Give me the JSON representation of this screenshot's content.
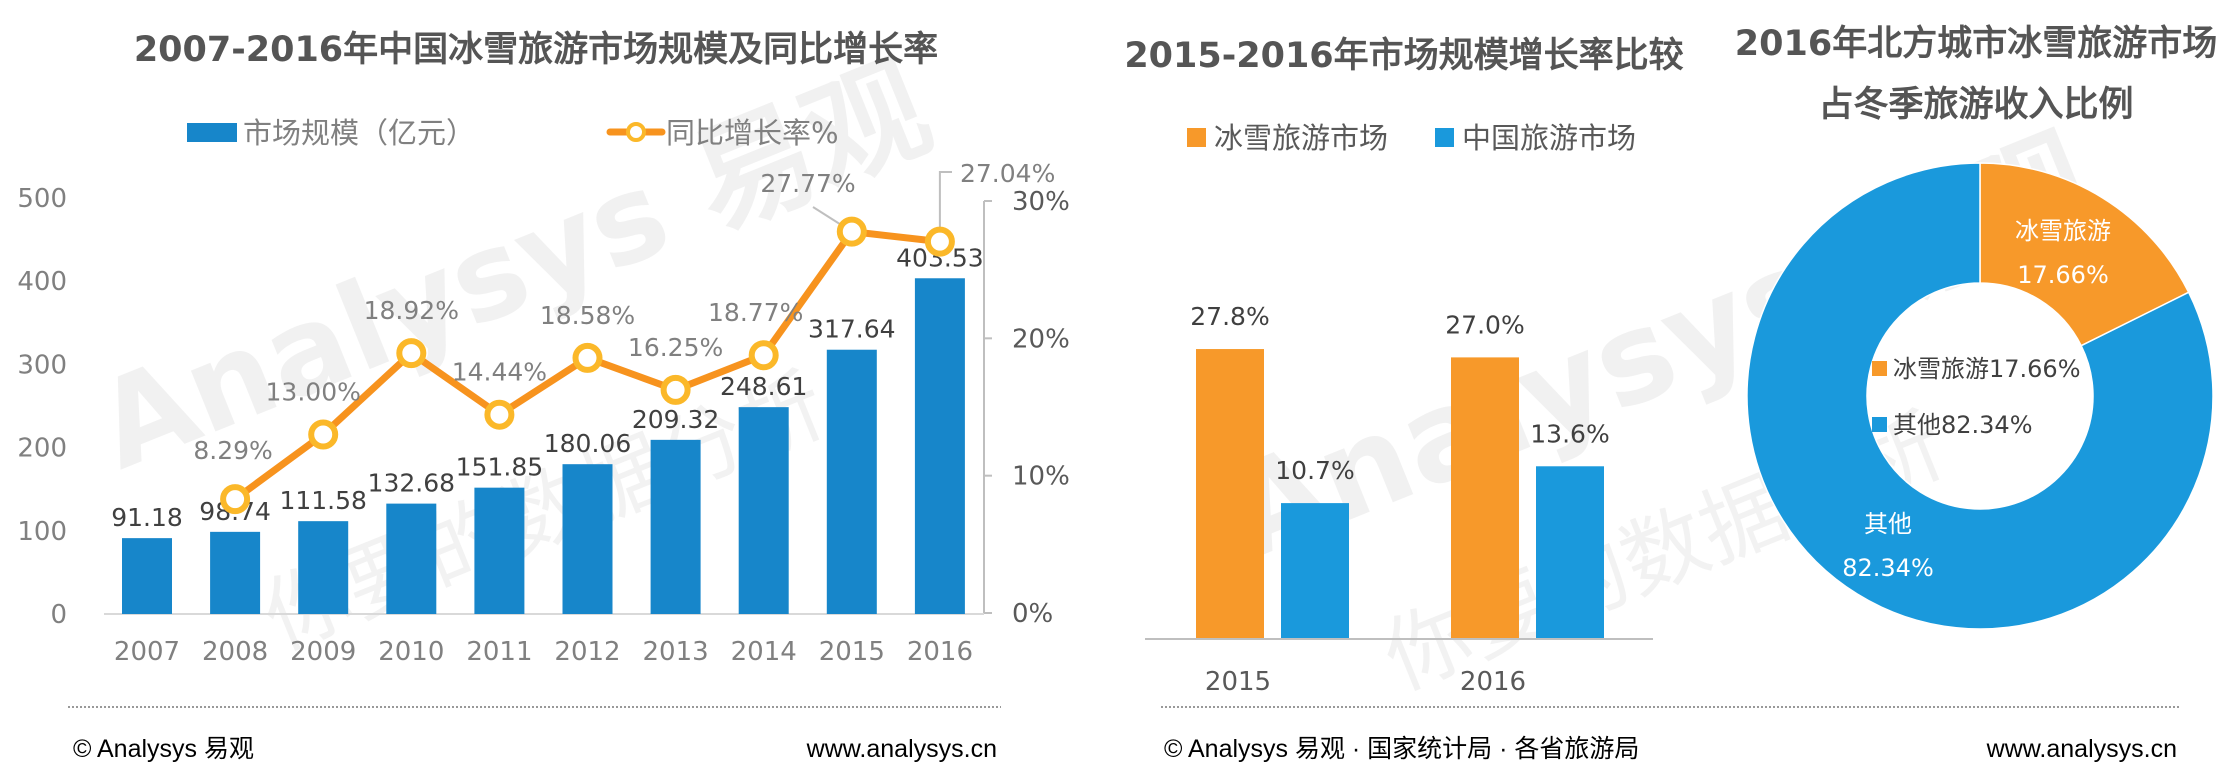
{
  "colors": {
    "blue_bar": "#1786CA",
    "line_orange": "#F7931E",
    "marker_ring": "#FBB829",
    "orange": "#F7992A",
    "blue": "#1A99DC",
    "axis": "#bfbfbf",
    "title": "#555555"
  },
  "chart_data": [
    {
      "type": "bar+line",
      "title": "2007-2016年中国冰雪旅游市场规模及同比增长率",
      "categories": [
        "2007",
        "2008",
        "2009",
        "2010",
        "2011",
        "2012",
        "2013",
        "2014",
        "2015",
        "2016"
      ],
      "series": [
        {
          "name": "市场规模（亿元）",
          "type": "bar",
          "axis": "left",
          "values": [
            91.18,
            98.74,
            111.58,
            132.68,
            151.85,
            180.06,
            209.32,
            248.61,
            317.64,
            403.53
          ],
          "labels": [
            "91.18",
            "98.74",
            "111.58",
            "132.68",
            "151.85",
            "180.06",
            "209.32",
            "248.61",
            "317.64",
            "403.53"
          ]
        },
        {
          "name": "同比增长率%",
          "type": "line",
          "axis": "right",
          "values": [
            null,
            8.29,
            13.0,
            18.92,
            14.44,
            18.58,
            16.25,
            18.77,
            27.77,
            27.04
          ],
          "labels": [
            null,
            "8.29%",
            "13.00%",
            "18.92%",
            "14.44%",
            "18.58%",
            "16.25%",
            "18.77%",
            "27.77%",
            "27.04%"
          ]
        }
      ],
      "left_axis": {
        "ylim": [
          0,
          500
        ],
        "ticks": [
          "0",
          "100",
          "200",
          "300",
          "400",
          "500"
        ]
      },
      "right_axis": {
        "ylim": [
          0,
          30
        ],
        "ticks": [
          "0%",
          "10%",
          "20%",
          "30%"
        ]
      },
      "legend": {
        "position": "top",
        "items": [
          "市场规模（亿元）",
          "同比增长率%"
        ]
      }
    },
    {
      "type": "bar",
      "title": "2015-2016年市场规模增长率比较",
      "categories": [
        "2015",
        "2016"
      ],
      "series": [
        {
          "name": "冰雪旅游市场",
          "values": [
            27.8,
            27.0
          ],
          "labels": [
            "27.8%",
            "27.0%"
          ]
        },
        {
          "name": "中国旅游市场",
          "values": [
            10.7,
            13.6
          ],
          "labels": [
            "10.7%",
            "13.6%"
          ]
        }
      ],
      "legend": {
        "position": "top",
        "items": [
          "冰雪旅游市场",
          "中国旅游市场"
        ]
      }
    },
    {
      "type": "pie",
      "donut": true,
      "title_lines": [
        "2016年北方城市冰雪旅游市场",
        "占冬季旅游收入比例"
      ],
      "slices": [
        {
          "name": "冰雪旅游",
          "value": 17.66,
          "label": "17.66%",
          "legend": "冰雪旅游17.66%"
        },
        {
          "name": "其他",
          "value": 82.34,
          "label": "82.34%",
          "legend": "其他82.34%"
        }
      ],
      "legend": {
        "position": "center"
      }
    }
  ],
  "footer": {
    "left_copyright": "© Analysys 易观",
    "left_url": "www.analysys.cn",
    "right_copyright": "© Analysys 易观 · 国家统计局 · 各省旅游局",
    "right_url": "www.analysys.cn"
  },
  "watermark": {
    "brand": "Analysys 易观",
    "slogan": "你要的数据分析"
  }
}
